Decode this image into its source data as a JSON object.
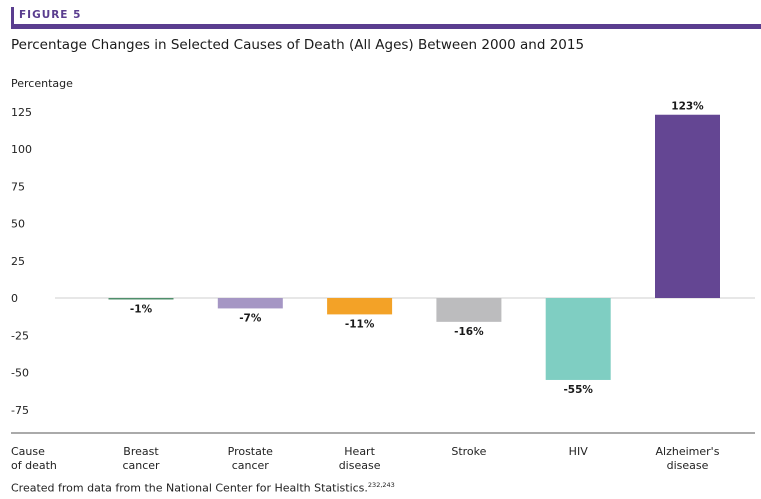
{
  "figure_label": "FIGURE 5",
  "title": "Percentage Changes in Selected Causes of Death (All Ages) Between 2000 and 2015",
  "source": {
    "text": "Created from data from the National Center for Health Statistics.",
    "superscript": "232,243"
  },
  "colors": {
    "accent": "#5a3d8f"
  },
  "chart_data": {
    "type": "bar",
    "ylabel": "Percentage",
    "xlabel": "Cause of death",
    "ylim": [
      -75,
      125
    ],
    "yticks": [
      125,
      100,
      75,
      50,
      25,
      0,
      -25,
      -50,
      -75
    ],
    "categories": [
      "Breast cancer",
      "Prostate cancer",
      "Heart disease",
      "Stroke",
      "HIV",
      "Alzheimer's disease"
    ],
    "values": [
      -1,
      -7,
      -11,
      -16,
      -55,
      123
    ],
    "value_labels": [
      "-1%",
      "-7%",
      "-11%",
      "-16%",
      "-55%",
      "123%"
    ],
    "bar_colors": [
      "#4f8f6b",
      "#a596c4",
      "#f3a227",
      "#bcbcbe",
      "#7fcec2",
      "#644693"
    ],
    "grid": false
  }
}
